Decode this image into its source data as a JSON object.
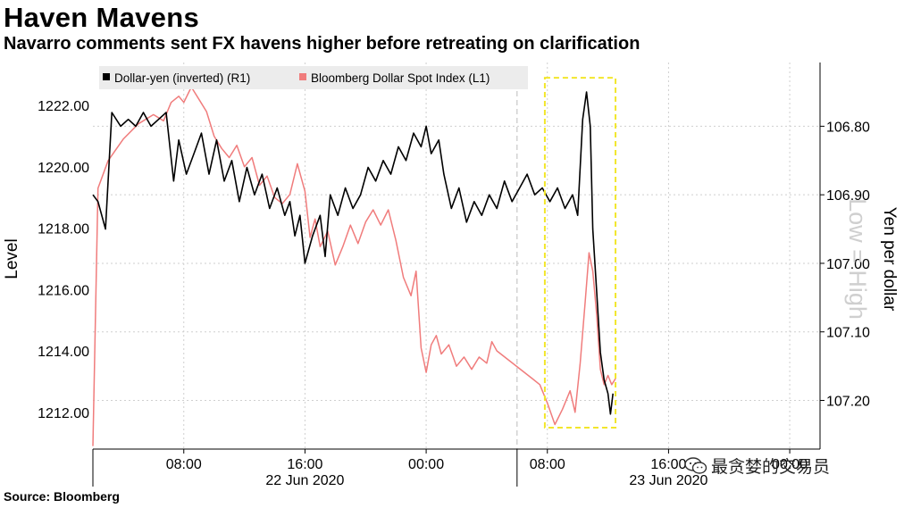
{
  "title": "Haven Mavens",
  "subtitle": "Navarro comments sent FX havens higher before retreating on clarification",
  "source": "Source: Bloomberg",
  "watermark": "最贪婪的交易员",
  "colors": {
    "usd_yen": "#000000",
    "bbdxy": "#f07c7c",
    "highlight": "#f2e62b",
    "grid": "#cfcfcf"
  },
  "chart_data": {
    "type": "line",
    "x_ticks": [
      {
        "x": "2020-06-22 08:00",
        "label": "08:00"
      },
      {
        "x": "2020-06-22 16:00",
        "label": "16:00"
      },
      {
        "x": "2020-06-23 00:00",
        "label": "00:00"
      },
      {
        "x": "2020-06-23 08:00",
        "label": "08:00"
      },
      {
        "x": "2020-06-23 16:00",
        "label": "16:00"
      },
      {
        "x": "2020-06-24 00:00",
        "label": "00:00"
      }
    ],
    "date_labels": [
      {
        "x": "2020-06-22 16:00",
        "label": "22 Jun 2020"
      },
      {
        "x": "2020-06-23 16:00",
        "label": "23 Jun 2020"
      }
    ],
    "day_separator": "2020-06-23 06:00",
    "x_range": [
      "2020-06-22 02:00",
      "2020-06-24 02:00"
    ],
    "left_axis": {
      "label": "Level",
      "ylim": [
        1210.8,
        1223.4
      ],
      "ticks": [
        "1212.00",
        "1214.00",
        "1216.00",
        "1218.00",
        "1220.00",
        "1222.00"
      ]
    },
    "right_axis": {
      "label": "Yen per dollar",
      "note": "Low = High",
      "inverted": true,
      "ylim": [
        106.707,
        107.271
      ],
      "ticks": [
        "106.80",
        "106.90",
        "107.00",
        "107.10",
        "107.20"
      ]
    },
    "highlight": {
      "x_start": "2020-06-23 07:50",
      "x_end": "2020-06-23 12:30",
      "y_left_min": 1211.5,
      "y_left_max": 1222.9
    },
    "series": [
      {
        "name": "Dollar-yen (inverted) (R1)",
        "axis": "right",
        "points": [
          [
            "2020-06-22 02:00",
            106.9
          ],
          [
            "2020-06-22 02:20",
            106.91
          ],
          [
            "2020-06-22 02:50",
            106.95
          ],
          [
            "2020-06-22 03:15",
            106.78
          ],
          [
            "2020-06-22 03:50",
            106.8
          ],
          [
            "2020-06-22 04:20",
            106.79
          ],
          [
            "2020-06-22 04:50",
            106.8
          ],
          [
            "2020-06-22 05:20",
            106.78
          ],
          [
            "2020-06-22 05:50",
            106.8
          ],
          [
            "2020-06-22 06:20",
            106.79
          ],
          [
            "2020-06-22 06:50",
            106.78
          ],
          [
            "2020-06-22 07:20",
            106.88
          ],
          [
            "2020-06-22 07:40",
            106.82
          ],
          [
            "2020-06-22 08:10",
            106.87
          ],
          [
            "2020-06-22 08:40",
            106.84
          ],
          [
            "2020-06-22 09:10",
            106.81
          ],
          [
            "2020-06-22 09:40",
            106.87
          ],
          [
            "2020-06-22 10:10",
            106.82
          ],
          [
            "2020-06-22 10:40",
            106.88
          ],
          [
            "2020-06-22 11:10",
            106.85
          ],
          [
            "2020-06-22 11:40",
            106.91
          ],
          [
            "2020-06-22 12:10",
            106.86
          ],
          [
            "2020-06-22 12:40",
            106.9
          ],
          [
            "2020-06-22 13:10",
            106.87
          ],
          [
            "2020-06-22 13:40",
            106.92
          ],
          [
            "2020-06-22 14:10",
            106.89
          ],
          [
            "2020-06-22 14:40",
            106.93
          ],
          [
            "2020-06-22 15:00",
            106.91
          ],
          [
            "2020-06-22 15:20",
            106.96
          ],
          [
            "2020-06-22 15:40",
            106.93
          ],
          [
            "2020-06-22 16:00",
            107.0
          ],
          [
            "2020-06-22 16:30",
            106.96
          ],
          [
            "2020-06-22 17:00",
            106.93
          ],
          [
            "2020-06-22 17:20",
            106.99
          ],
          [
            "2020-06-22 17:40",
            106.9
          ],
          [
            "2020-06-22 18:10",
            106.93
          ],
          [
            "2020-06-22 18:40",
            106.89
          ],
          [
            "2020-06-22 19:10",
            106.92
          ],
          [
            "2020-06-22 19:40",
            106.9
          ],
          [
            "2020-06-22 20:10",
            106.86
          ],
          [
            "2020-06-22 20:40",
            106.88
          ],
          [
            "2020-06-22 21:10",
            106.85
          ],
          [
            "2020-06-22 21:40",
            106.87
          ],
          [
            "2020-06-22 22:10",
            106.83
          ],
          [
            "2020-06-22 22:40",
            106.85
          ],
          [
            "2020-06-22 23:10",
            106.81
          ],
          [
            "2020-06-22 23:40",
            106.83
          ],
          [
            "2020-06-23 00:00",
            106.8
          ],
          [
            "2020-06-23 00:20",
            106.84
          ],
          [
            "2020-06-23 00:50",
            106.82
          ],
          [
            "2020-06-23 01:10",
            106.87
          ],
          [
            "2020-06-23 01:40",
            106.92
          ],
          [
            "2020-06-23 02:10",
            106.89
          ],
          [
            "2020-06-23 02:40",
            106.94
          ],
          [
            "2020-06-23 03:10",
            106.91
          ],
          [
            "2020-06-23 03:40",
            106.93
          ],
          [
            "2020-06-23 04:10",
            106.9
          ],
          [
            "2020-06-23 04:40",
            106.92
          ],
          [
            "2020-06-23 05:10",
            106.88
          ],
          [
            "2020-06-23 05:40",
            106.91
          ],
          [
            "2020-06-23 06:10",
            106.89
          ],
          [
            "2020-06-23 06:40",
            106.87
          ],
          [
            "2020-06-23 07:10",
            106.9
          ],
          [
            "2020-06-23 07:40",
            106.89
          ],
          [
            "2020-06-23 08:10",
            106.91
          ],
          [
            "2020-06-23 08:40",
            106.89
          ],
          [
            "2020-06-23 09:10",
            106.92
          ],
          [
            "2020-06-23 09:40",
            106.9
          ],
          [
            "2020-06-23 10:00",
            106.93
          ],
          [
            "2020-06-23 10:20",
            106.79
          ],
          [
            "2020-06-23 10:35",
            106.75
          ],
          [
            "2020-06-23 10:50",
            106.8
          ],
          [
            "2020-06-23 11:00",
            106.95
          ],
          [
            "2020-06-23 11:15",
            107.04
          ],
          [
            "2020-06-23 11:30",
            107.13
          ],
          [
            "2020-06-23 11:45",
            107.17
          ],
          [
            "2020-06-23 12:00",
            107.19
          ],
          [
            "2020-06-23 12:10",
            107.22
          ],
          [
            "2020-06-23 12:20",
            107.19
          ]
        ]
      },
      {
        "name": "Bloomberg Dollar Spot Index (L1)",
        "axis": "left",
        "points": [
          [
            "2020-06-22 02:00",
            1210.9
          ],
          [
            "2020-06-22 02:20",
            1219.3
          ],
          [
            "2020-06-22 03:00",
            1220.2
          ],
          [
            "2020-06-22 04:00",
            1220.9
          ],
          [
            "2020-06-22 05:00",
            1221.4
          ],
          [
            "2020-06-22 06:00",
            1221.7
          ],
          [
            "2020-06-22 06:40",
            1221.5
          ],
          [
            "2020-06-22 07:10",
            1222.1
          ],
          [
            "2020-06-22 07:40",
            1222.3
          ],
          [
            "2020-06-22 08:00",
            1222.1
          ],
          [
            "2020-06-22 08:30",
            1222.6
          ],
          [
            "2020-06-22 09:00",
            1222.2
          ],
          [
            "2020-06-22 09:30",
            1221.8
          ],
          [
            "2020-06-22 10:00",
            1221.0
          ],
          [
            "2020-06-22 10:30",
            1220.6
          ],
          [
            "2020-06-22 11:00",
            1220.3
          ],
          [
            "2020-06-22 11:30",
            1220.7
          ],
          [
            "2020-06-22 12:00",
            1220.0
          ],
          [
            "2020-06-22 12:30",
            1220.3
          ],
          [
            "2020-06-22 13:00",
            1219.4
          ],
          [
            "2020-06-22 13:30",
            1219.7
          ],
          [
            "2020-06-22 14:00",
            1219.0
          ],
          [
            "2020-06-22 14:30",
            1218.8
          ],
          [
            "2020-06-22 15:00",
            1219.1
          ],
          [
            "2020-06-22 15:30",
            1220.1
          ],
          [
            "2020-06-22 16:00",
            1219.2
          ],
          [
            "2020-06-22 16:20",
            1217.7
          ],
          [
            "2020-06-22 16:40",
            1218.3
          ],
          [
            "2020-06-22 17:00",
            1217.4
          ],
          [
            "2020-06-22 17:30",
            1217.9
          ],
          [
            "2020-06-22 18:00",
            1216.8
          ],
          [
            "2020-06-22 18:30",
            1217.4
          ],
          [
            "2020-06-22 19:00",
            1218.1
          ],
          [
            "2020-06-22 19:30",
            1217.5
          ],
          [
            "2020-06-22 20:00",
            1218.2
          ],
          [
            "2020-06-22 20:30",
            1218.6
          ],
          [
            "2020-06-22 21:00",
            1218.1
          ],
          [
            "2020-06-22 21:30",
            1218.6
          ],
          [
            "2020-06-22 22:00",
            1217.6
          ],
          [
            "2020-06-22 22:30",
            1216.4
          ],
          [
            "2020-06-22 23:00",
            1215.8
          ],
          [
            "2020-06-22 23:20",
            1216.6
          ],
          [
            "2020-06-22 23:40",
            1214.1
          ],
          [
            "2020-06-23 00:00",
            1213.3
          ],
          [
            "2020-06-23 00:20",
            1214.2
          ],
          [
            "2020-06-23 00:40",
            1214.5
          ],
          [
            "2020-06-23 01:00",
            1213.9
          ],
          [
            "2020-06-23 01:30",
            1214.2
          ],
          [
            "2020-06-23 02:00",
            1213.5
          ],
          [
            "2020-06-23 02:30",
            1213.8
          ],
          [
            "2020-06-23 03:00",
            1213.4
          ],
          [
            "2020-06-23 03:30",
            1213.8
          ],
          [
            "2020-06-23 04:00",
            1213.6
          ],
          [
            "2020-06-23 04:20",
            1214.3
          ],
          [
            "2020-06-23 04:40",
            1214.0
          ],
          [
            "2020-06-23 07:00",
            1213.1
          ],
          [
            "2020-06-23 07:30",
            1212.9
          ],
          [
            "2020-06-23 08:00",
            1212.3
          ],
          [
            "2020-06-23 08:30",
            1211.6
          ],
          [
            "2020-06-23 09:00",
            1212.1
          ],
          [
            "2020-06-23 09:30",
            1212.7
          ],
          [
            "2020-06-23 09:50",
            1212.0
          ],
          [
            "2020-06-23 10:10",
            1213.6
          ],
          [
            "2020-06-23 10:30",
            1215.6
          ],
          [
            "2020-06-23 10:45",
            1217.2
          ],
          [
            "2020-06-23 11:00",
            1216.6
          ],
          [
            "2020-06-23 11:15",
            1215.2
          ],
          [
            "2020-06-23 11:30",
            1213.4
          ],
          [
            "2020-06-23 11:45",
            1212.9
          ],
          [
            "2020-06-23 12:00",
            1213.2
          ],
          [
            "2020-06-23 12:15",
            1212.9
          ],
          [
            "2020-06-23 12:30",
            1213.1
          ]
        ]
      }
    ]
  }
}
